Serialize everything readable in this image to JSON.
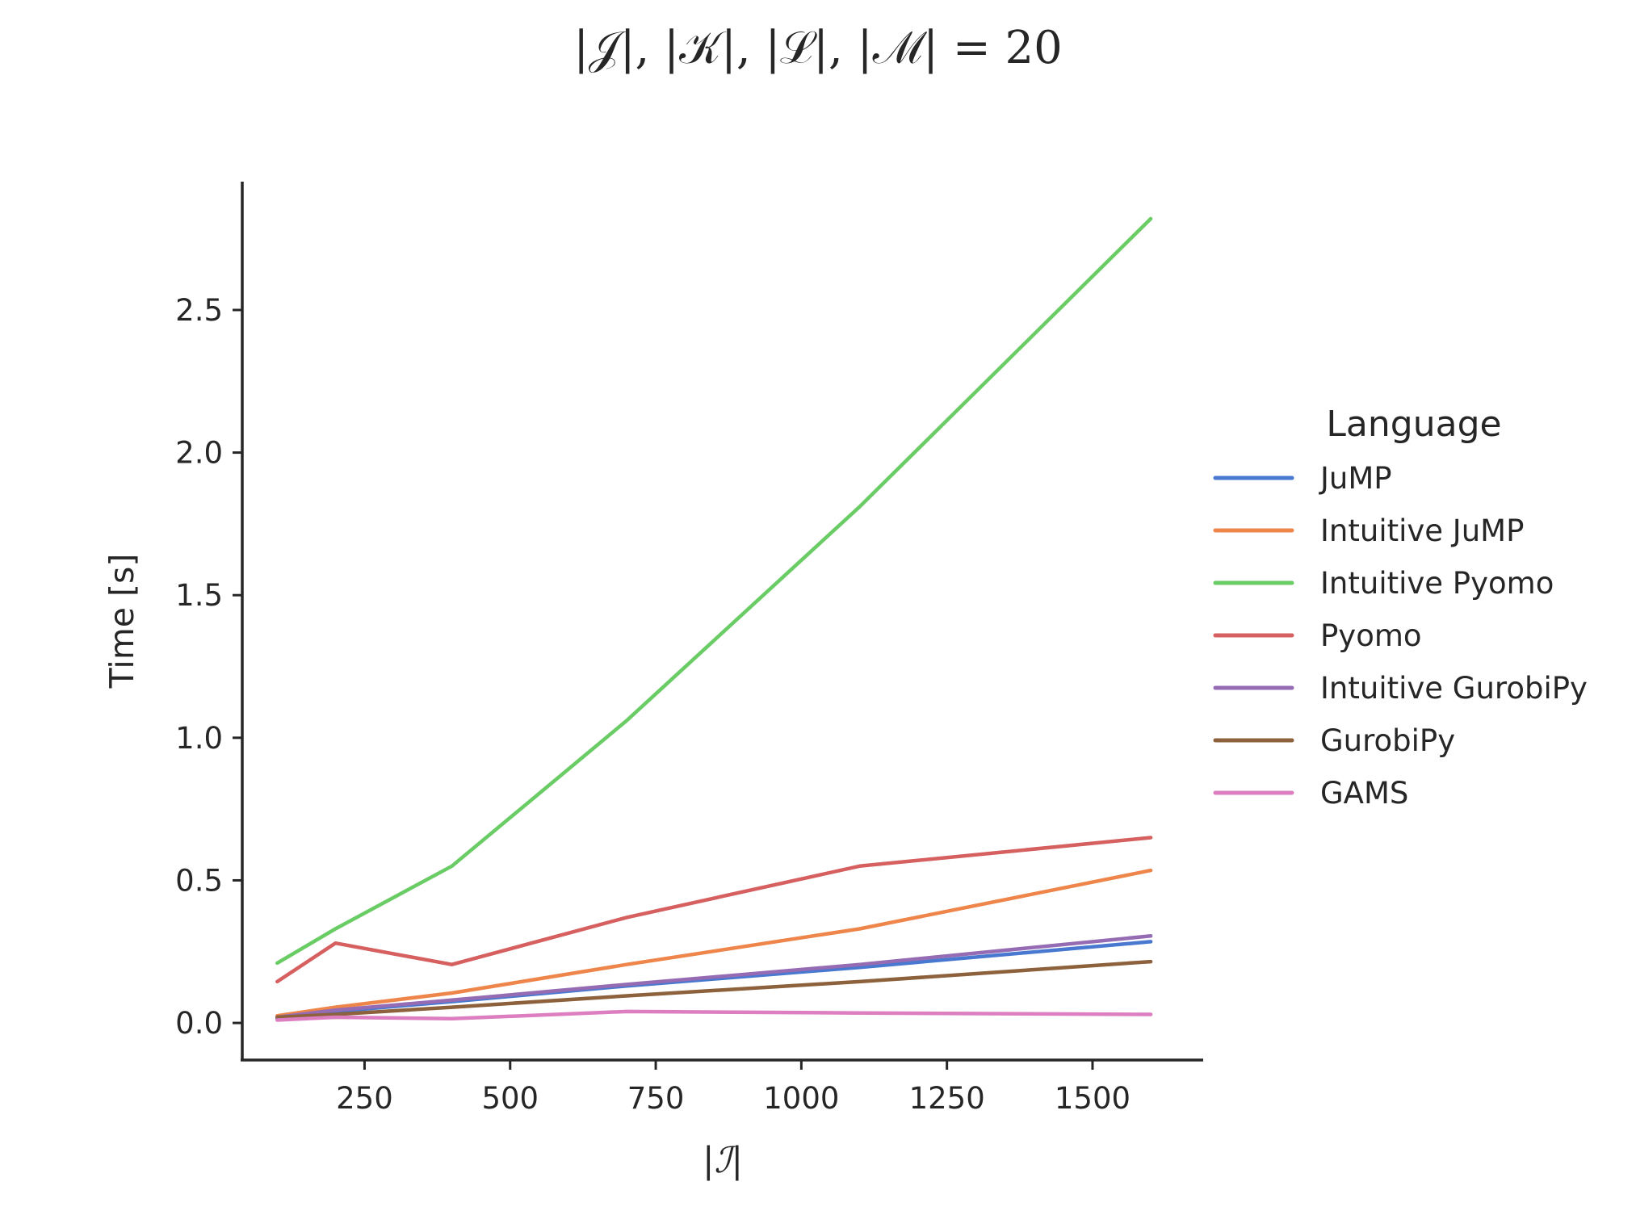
{
  "chart_data": {
    "type": "line",
    "title": "|𝒥|, |𝒦|, |ℒ|, |ℳ| = 20",
    "xlabel": "|ℐ|",
    "ylabel": "Time [s]",
    "xlim": [
      40,
      1690
    ],
    "ylim": [
      -0.13,
      2.95
    ],
    "xticks": [
      250,
      500,
      750,
      1000,
      1250,
      1500
    ],
    "xtick_labels": [
      "250",
      "500",
      "750",
      "1000",
      "1250",
      "1500"
    ],
    "yticks": [
      0.0,
      0.5,
      1.0,
      1.5,
      2.0,
      2.5
    ],
    "ytick_labels": [
      "0.0",
      "0.5",
      "1.0",
      "1.5",
      "2.0",
      "2.5"
    ],
    "grid": false,
    "legend": {
      "title": "Language",
      "placement": "right"
    },
    "x": [
      100,
      200,
      400,
      700,
      1100,
      1600
    ],
    "series": [
      {
        "name": "JuMP",
        "color": "#4878d0",
        "values": [
          0.015,
          0.04,
          0.075,
          0.13,
          0.195,
          0.285
        ]
      },
      {
        "name": "Intuitive JuMP",
        "color": "#ee854a",
        "values": [
          0.025,
          0.055,
          0.105,
          0.205,
          0.33,
          0.535
        ]
      },
      {
        "name": "Intuitive Pyomo",
        "color": "#6acc64",
        "values": [
          0.21,
          0.33,
          0.55,
          1.06,
          1.81,
          2.82
        ]
      },
      {
        "name": "Pyomo",
        "color": "#d65f5f",
        "values": [
          0.145,
          0.28,
          0.205,
          0.37,
          0.55,
          0.65
        ]
      },
      {
        "name": "Intuitive GurobiPy",
        "color": "#956cb4",
        "values": [
          0.02,
          0.045,
          0.08,
          0.135,
          0.205,
          0.305
        ]
      },
      {
        "name": "GurobiPy",
        "color": "#8c613c",
        "values": [
          0.02,
          0.03,
          0.055,
          0.095,
          0.145,
          0.215
        ]
      },
      {
        "name": "GAMS",
        "color": "#dc7ec0",
        "values": [
          0.01,
          0.02,
          0.015,
          0.04,
          0.035,
          0.03
        ]
      }
    ]
  }
}
